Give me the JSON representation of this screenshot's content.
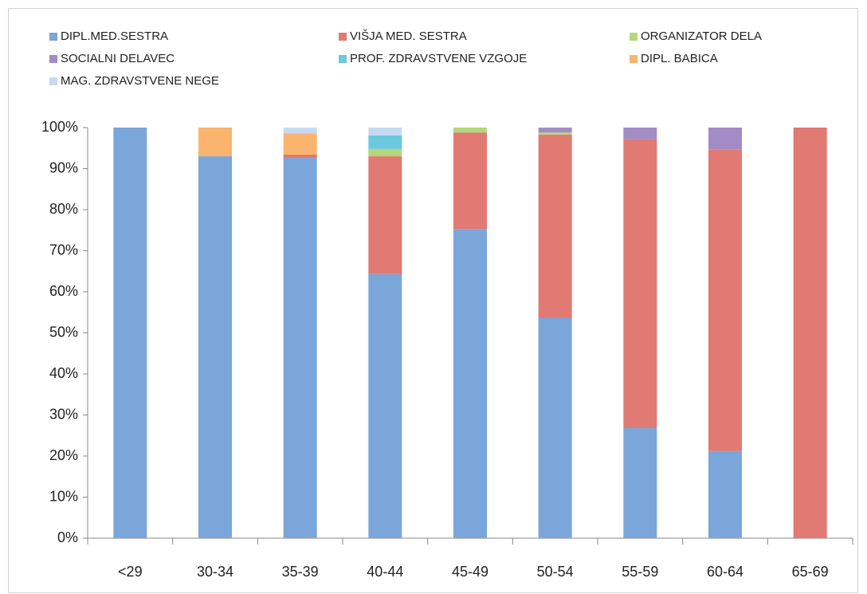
{
  "chart_data": {
    "type": "stacked_bar",
    "categories": [
      "<29",
      "30-34",
      "35-39",
      "40-44",
      "45-49",
      "50-54",
      "55-59",
      "60-64",
      "65-69"
    ],
    "series": [
      {
        "name": "DIPL.MED.SESTRA",
        "color": "#7aa6d9",
        "values": [
          100,
          93.0,
          92.6,
          64.3,
          75.3,
          53.6,
          26.8,
          21.2,
          0
        ]
      },
      {
        "name": "VIŠJA MED. SESTRA",
        "color": "#e07a73",
        "values": [
          0,
          0,
          0.8,
          28.7,
          23.5,
          44.7,
          70.3,
          73.4,
          100
        ]
      },
      {
        "name": "ORGANIZATOR DELA",
        "color": "#b3d77a",
        "values": [
          0,
          0,
          0,
          1.8,
          1.2,
          0.5,
          0,
          0,
          0
        ]
      },
      {
        "name": "SOCIALNI DELAVEC",
        "color": "#a38cc6",
        "values": [
          0,
          0,
          0,
          0,
          0,
          1.2,
          2.9,
          5.4,
          0
        ]
      },
      {
        "name": "PROF. ZDRAVSTVENE VZGOJE",
        "color": "#6cc8dc",
        "values": [
          0,
          0,
          0,
          3.3,
          0,
          0,
          0,
          0,
          0
        ]
      },
      {
        "name": "DIPL. BABICA",
        "color": "#fbb46e",
        "values": [
          0,
          7.0,
          5.2,
          0,
          0,
          0,
          0,
          0,
          0
        ]
      },
      {
        "name": "MAG. ZDRAVSTVENE NEGE",
        "color": "#c5d9f1",
        "values": [
          0,
          0,
          1.4,
          1.9,
          0,
          0,
          0,
          0,
          0
        ]
      }
    ],
    "ylim": [
      0,
      100
    ],
    "yticks": [
      {
        "value": 0,
        "label": "0%"
      },
      {
        "value": 10,
        "label": "10%"
      },
      {
        "value": 20,
        "label": "20%"
      },
      {
        "value": 30,
        "label": "30%"
      },
      {
        "value": 40,
        "label": "40%"
      },
      {
        "value": 50,
        "label": "50%"
      },
      {
        "value": 60,
        "label": "60%"
      },
      {
        "value": 70,
        "label": "70%"
      },
      {
        "value": 80,
        "label": "80%"
      },
      {
        "value": 90,
        "label": "90%"
      },
      {
        "value": 100,
        "label": "100%"
      }
    ],
    "legend": "top"
  }
}
